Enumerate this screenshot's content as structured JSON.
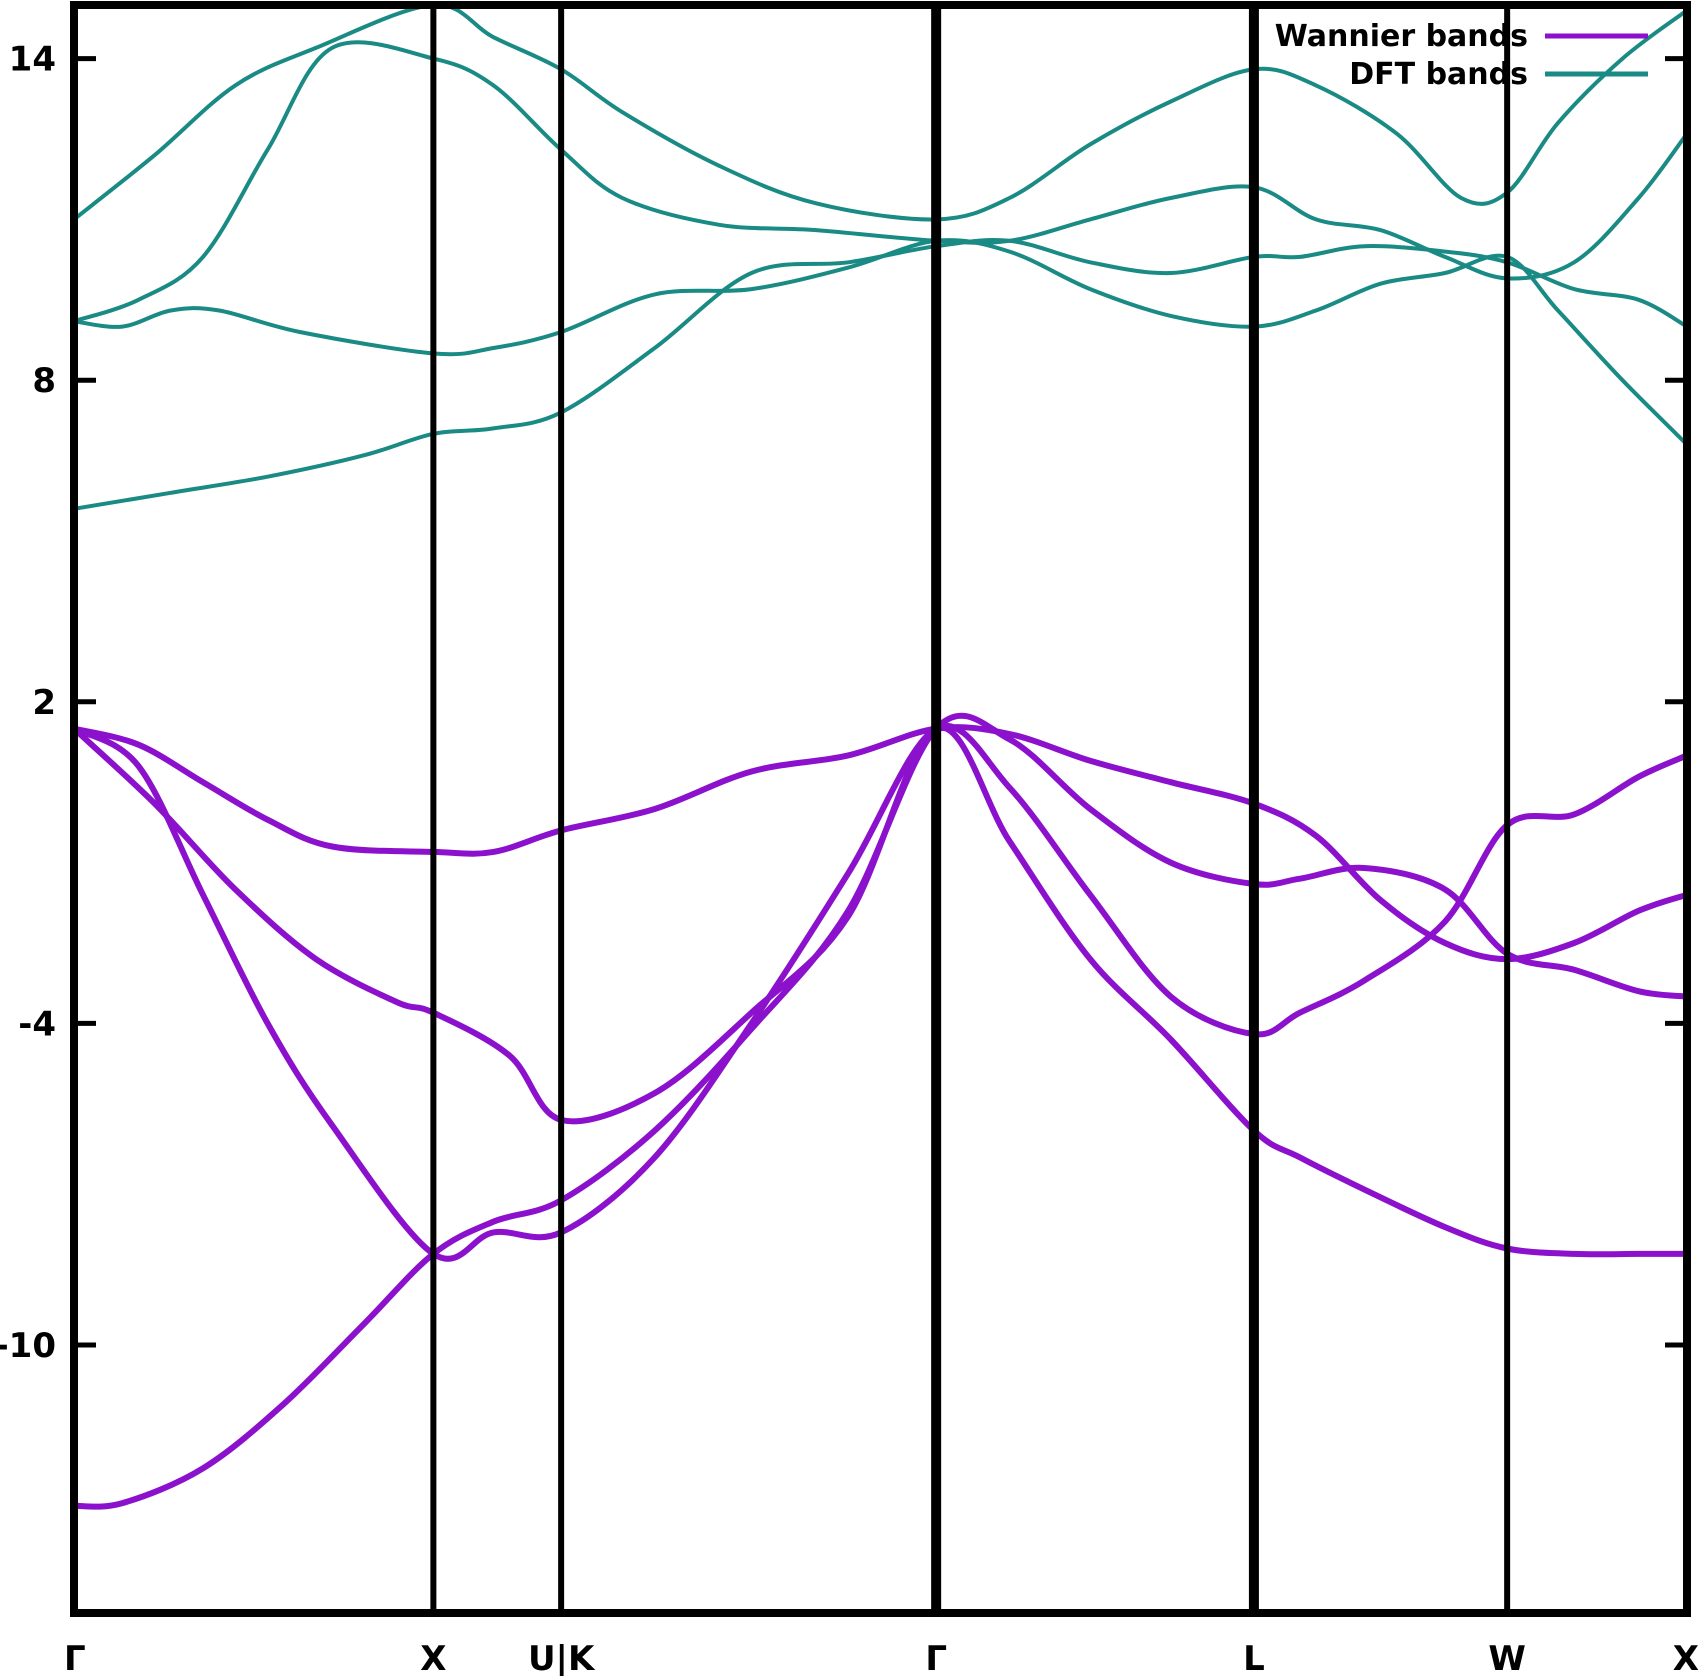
{
  "chart_data": {
    "type": "line",
    "title": "",
    "xlabel": "",
    "ylabel": "",
    "xlim": [
      0,
      1
    ],
    "ylim": [
      -15,
      15
    ],
    "grid": false,
    "legend": {
      "placement": "top-right",
      "entries": [
        {
          "label": "Wannier bands",
          "color": "#8b11cc"
        },
        {
          "label": "DFT bands",
          "color": "#1a8a84"
        }
      ]
    },
    "y_ticks": [
      {
        "value": 14,
        "label": "14"
      },
      {
        "value": 8,
        "label": "8"
      },
      {
        "value": 2,
        "label": "2"
      },
      {
        "value": -4,
        "label": "-4"
      },
      {
        "value": -10,
        "label": "-10"
      }
    ],
    "x_ticks": [
      {
        "position": 0.0,
        "label": "Γ"
      },
      {
        "position": 0.2228,
        "label": "X"
      },
      {
        "position": 0.302,
        "label": "U|K"
      },
      {
        "position": 0.5345,
        "label": "Γ"
      },
      {
        "position": 0.7315,
        "label": "L"
      },
      {
        "position": 0.8885,
        "label": "W"
      },
      {
        "position": 1.0,
        "label": "X"
      }
    ],
    "high_symmetry_lines": [
      0.2228,
      0.302,
      0.5345,
      0.7315,
      0.8885
    ],
    "series": [
      {
        "name": "Wannier bands",
        "color": "#8b11cc",
        "bands": [
          [
            [
              0,
              -13.0
            ],
            [
              0.03,
              -12.95
            ],
            [
              0.08,
              -12.3
            ],
            [
              0.13,
              -11.1
            ],
            [
              0.18,
              -9.6
            ],
            [
              0.2228,
              -8.3
            ],
            [
              0.26,
              -7.7
            ],
            [
              0.302,
              -7.3
            ],
            [
              0.36,
              -6.0
            ],
            [
              0.42,
              -4.1
            ],
            [
              0.48,
              -1.9
            ],
            [
              0.5345,
              1.5
            ],
            [
              0.58,
              1.3
            ],
            [
              0.63,
              0.0
            ],
            [
              0.68,
              -1.0
            ],
            [
              0.7315,
              -1.4
            ],
            [
              0.76,
              -1.3
            ],
            [
              0.8,
              -1.1
            ],
            [
              0.85,
              -1.5
            ],
            [
              0.8885,
              -2.7
            ],
            [
              0.93,
              -3.0
            ],
            [
              0.97,
              -3.4
            ],
            [
              1.0,
              -3.5
            ]
          ],
          [
            [
              0,
              1.5
            ],
            [
              0.05,
              0.1
            ],
            [
              0.1,
              -1.5
            ],
            [
              0.15,
              -2.8
            ],
            [
              0.2,
              -3.6
            ],
            [
              0.2228,
              -3.8
            ],
            [
              0.27,
              -4.6
            ],
            [
              0.302,
              -5.8
            ],
            [
              0.36,
              -5.3
            ],
            [
              0.42,
              -3.8
            ],
            [
              0.48,
              -2.0
            ],
            [
              0.5345,
              1.5
            ],
            [
              0.58,
              -0.6
            ],
            [
              0.63,
              -2.8
            ],
            [
              0.68,
              -4.3
            ],
            [
              0.7315,
              -6.0
            ],
            [
              0.76,
              -6.5
            ],
            [
              0.8,
              -7.1
            ],
            [
              0.85,
              -7.8
            ],
            [
              0.8885,
              -8.2
            ],
            [
              0.93,
              -8.3
            ],
            [
              0.97,
              -8.3
            ],
            [
              1.0,
              -8.3
            ]
          ],
          [
            [
              0,
              1.5
            ],
            [
              0.04,
              1.2
            ],
            [
              0.08,
              0.5
            ],
            [
              0.12,
              -0.2
            ],
            [
              0.16,
              -0.7
            ],
            [
              0.2228,
              -0.8
            ],
            [
              0.26,
              -0.8
            ],
            [
              0.302,
              -0.4
            ],
            [
              0.36,
              0.0
            ],
            [
              0.42,
              0.7
            ],
            [
              0.48,
              1.0
            ],
            [
              0.5345,
              1.5
            ],
            [
              0.58,
              1.4
            ],
            [
              0.63,
              0.9
            ],
            [
              0.68,
              0.5
            ],
            [
              0.7315,
              0.1
            ],
            [
              0.77,
              -0.5
            ],
            [
              0.81,
              -1.7
            ],
            [
              0.85,
              -2.5
            ],
            [
              0.8885,
              -2.8
            ],
            [
              0.93,
              -2.5
            ],
            [
              0.97,
              -1.9
            ],
            [
              1.0,
              -1.6
            ]
          ],
          [
            [
              0,
              1.5
            ],
            [
              0.04,
              0.8
            ],
            [
              0.08,
              -1.6
            ],
            [
              0.12,
              -4.0
            ],
            [
              0.16,
              -5.9
            ],
            [
              0.2228,
              -8.3
            ],
            [
              0.26,
              -7.9
            ],
            [
              0.302,
              -7.9
            ],
            [
              0.36,
              -6.5
            ],
            [
              0.42,
              -4.0
            ],
            [
              0.48,
              -1.2
            ],
            [
              0.5345,
              1.5
            ],
            [
              0.58,
              0.4
            ],
            [
              0.63,
              -1.6
            ],
            [
              0.68,
              -3.5
            ],
            [
              0.7315,
              -4.2
            ],
            [
              0.76,
              -3.8
            ],
            [
              0.8,
              -3.2
            ],
            [
              0.85,
              -2.1
            ],
            [
              0.8885,
              -0.3
            ],
            [
              0.93,
              -0.1
            ],
            [
              0.97,
              0.6
            ],
            [
              1.0,
              1.0
            ]
          ]
        ]
      },
      {
        "name": "DFT bands",
        "color": "#1a8a84",
        "bands": [
          [
            [
              0,
              5.6
            ],
            [
              0.06,
              5.9
            ],
            [
              0.12,
              6.2
            ],
            [
              0.18,
              6.6
            ],
            [
              0.2228,
              7.0
            ],
            [
              0.26,
              7.1
            ],
            [
              0.302,
              7.4
            ],
            [
              0.36,
              8.6
            ],
            [
              0.42,
              10.0
            ],
            [
              0.48,
              10.2
            ],
            [
              0.5345,
              10.5
            ],
            [
              0.58,
              10.6
            ],
            [
              0.63,
              10.2
            ],
            [
              0.68,
              10.0
            ],
            [
              0.7315,
              10.3
            ],
            [
              0.76,
              10.3
            ],
            [
              0.8,
              10.5
            ],
            [
              0.85,
              10.4
            ],
            [
              0.8885,
              10.2
            ],
            [
              0.93,
              9.7
            ],
            [
              0.97,
              9.5
            ],
            [
              1.0,
              9.0
            ]
          ],
          [
            [
              0,
              9.1
            ],
            [
              0.03,
              9.0
            ],
            [
              0.06,
              9.3
            ],
            [
              0.09,
              9.3
            ],
            [
              0.14,
              8.9
            ],
            [
              0.2228,
              8.5
            ],
            [
              0.26,
              8.6
            ],
            [
              0.302,
              8.9
            ],
            [
              0.36,
              9.6
            ],
            [
              0.42,
              9.7
            ],
            [
              0.48,
              10.1
            ],
            [
              0.5345,
              10.6
            ],
            [
              0.58,
              10.4
            ],
            [
              0.63,
              9.7
            ],
            [
              0.68,
              9.2
            ],
            [
              0.7315,
              9.0
            ],
            [
              0.77,
              9.3
            ],
            [
              0.81,
              9.8
            ],
            [
              0.85,
              10.0
            ],
            [
              0.8885,
              10.3
            ],
            [
              0.92,
              9.3
            ],
            [
              0.96,
              8.0
            ],
            [
              1.0,
              6.8
            ]
          ],
          [
            [
              0,
              9.1
            ],
            [
              0.04,
              9.5
            ],
            [
              0.08,
              10.3
            ],
            [
              0.12,
              12.3
            ],
            [
              0.16,
              14.2
            ],
            [
              0.2228,
              14.0
            ],
            [
              0.26,
              13.5
            ],
            [
              0.302,
              12.3
            ],
            [
              0.34,
              11.4
            ],
            [
              0.4,
              10.9
            ],
            [
              0.46,
              10.8
            ],
            [
              0.5345,
              10.6
            ],
            [
              0.58,
              10.6
            ],
            [
              0.63,
              11.0
            ],
            [
              0.68,
              11.4
            ],
            [
              0.7315,
              11.6
            ],
            [
              0.77,
              11.0
            ],
            [
              0.81,
              10.8
            ],
            [
              0.85,
              10.3
            ],
            [
              0.8885,
              9.9
            ],
            [
              0.93,
              10.2
            ],
            [
              0.97,
              11.4
            ],
            [
              1.0,
              12.6
            ]
          ],
          [
            [
              0,
              11.0
            ],
            [
              0.05,
              12.2
            ],
            [
              0.1,
              13.5
            ],
            [
              0.15,
              14.2
            ],
            [
              0.2228,
              15.0
            ],
            [
              0.26,
              14.4
            ],
            [
              0.302,
              13.8
            ],
            [
              0.34,
              13.0
            ],
            [
              0.4,
              12.0
            ],
            [
              0.46,
              11.3
            ],
            [
              0.5345,
              11.0
            ],
            [
              0.58,
              11.4
            ],
            [
              0.63,
              12.4
            ],
            [
              0.68,
              13.2
            ],
            [
              0.7315,
              13.8
            ],
            [
              0.77,
              13.5
            ],
            [
              0.82,
              12.6
            ],
            [
              0.86,
              11.4
            ],
            [
              0.8885,
              11.5
            ],
            [
              0.92,
              12.8
            ],
            [
              0.96,
              14.0
            ],
            [
              1.0,
              14.9
            ]
          ]
        ]
      }
    ]
  }
}
